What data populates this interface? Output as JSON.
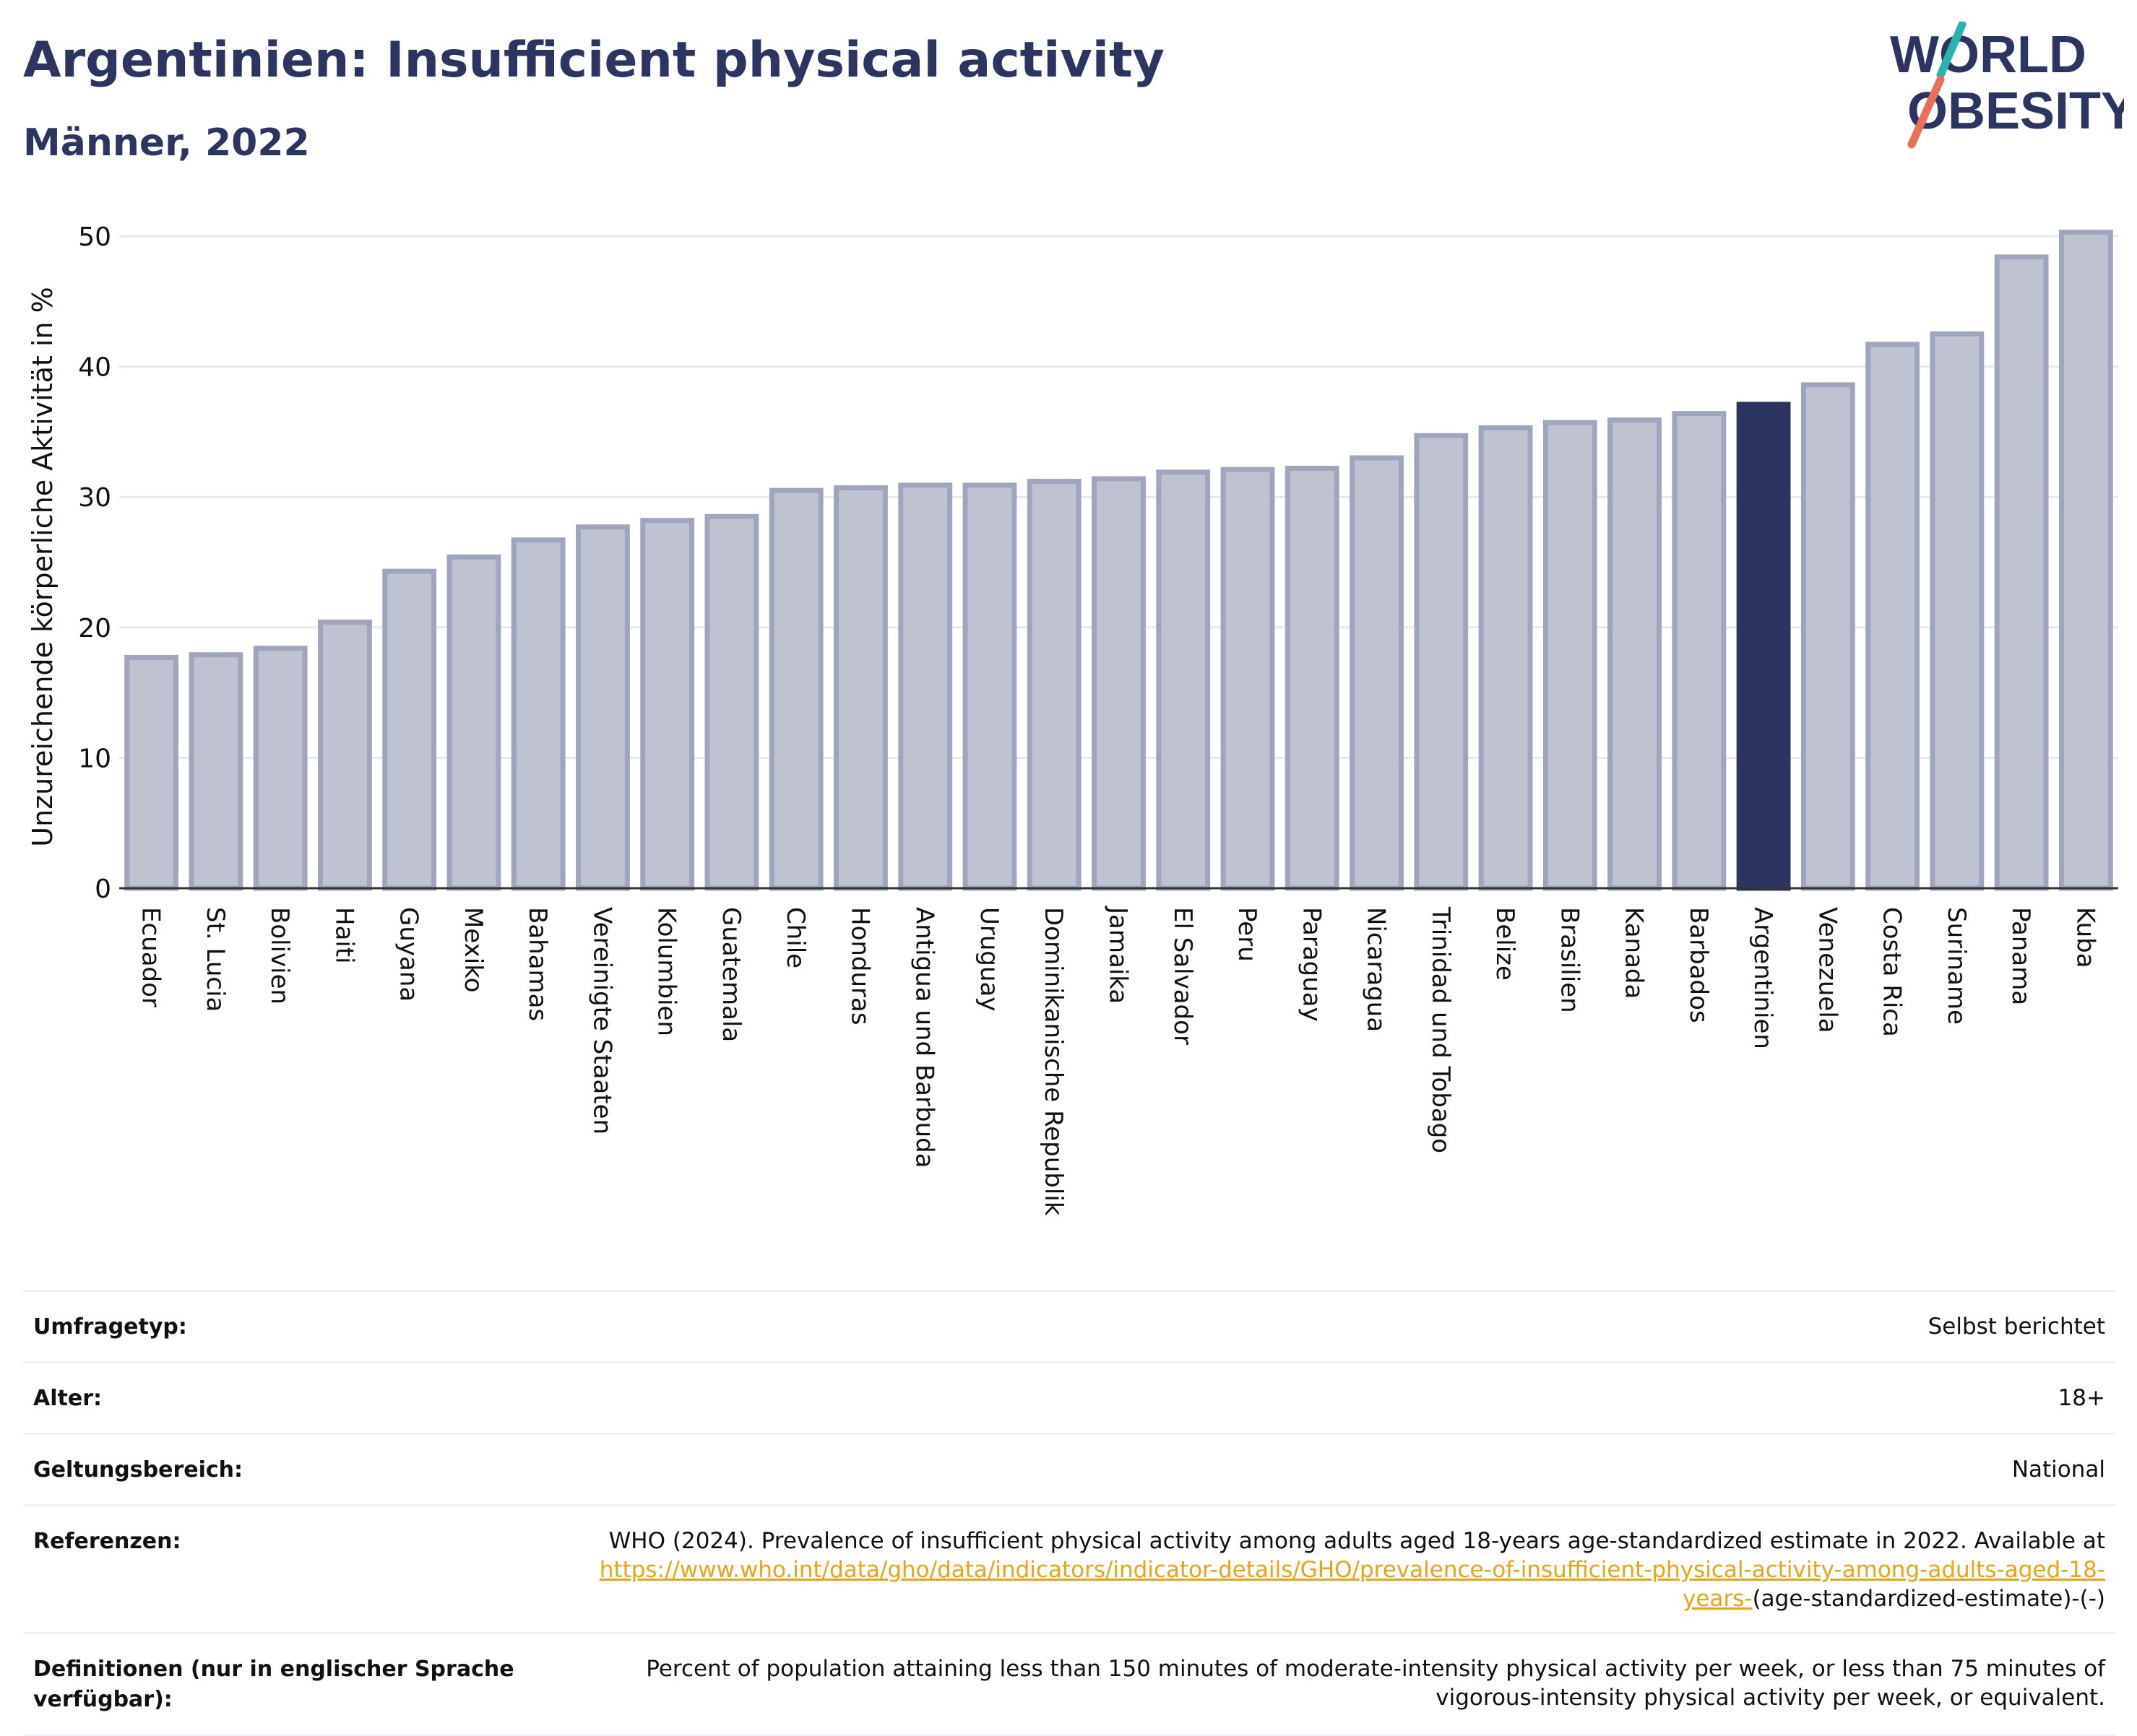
{
  "header": {
    "title": "Argentinien: Insufficient physical activity",
    "subtitle": "Männer, 2022",
    "logo_line1": "WORLD",
    "logo_line2": "OBESITY"
  },
  "colors": {
    "title": "#2b3560",
    "bar": "#bfc3d1",
    "bar_border": "#9ea5bd",
    "highlight": "#2b3560",
    "link": "#e8a317",
    "logo_teal": "#2bb3b1",
    "logo_coral": "#e8705a"
  },
  "chart_data": {
    "type": "bar",
    "ylabel": "Unzureichende körperliche Aktivität in %",
    "ylim": [
      0,
      50
    ],
    "yticks": [
      0,
      10,
      20,
      30,
      40,
      50
    ],
    "grid": true,
    "highlight": "Argentinien",
    "categories": [
      "Ecuador",
      "St. Lucia",
      "Bolivien",
      "Haiti",
      "Guyana",
      "Mexiko",
      "Bahamas",
      "Vereinigte Staaten",
      "Kolumbien",
      "Guatemala",
      "Chile",
      "Honduras",
      "Antigua und Barbuda",
      "Uruguay",
      "Dominikanische Republik",
      "Jamaika",
      "El Salvador",
      "Peru",
      "Paraguay",
      "Nicaragua",
      "Trinidad und Tobago",
      "Belize",
      "Brasilien",
      "Kanada",
      "Barbados",
      "Argentinien",
      "Venezuela",
      "Costa Rica",
      "Suriname",
      "Panama",
      "Kuba"
    ],
    "values": [
      17.7,
      17.9,
      18.4,
      20.4,
      24.3,
      25.4,
      26.7,
      27.7,
      28.2,
      28.5,
      30.5,
      30.7,
      30.9,
      30.9,
      31.2,
      31.4,
      31.9,
      32.1,
      32.2,
      33.0,
      34.7,
      35.3,
      35.7,
      35.9,
      36.4,
      37.1,
      38.6,
      41.7,
      42.5,
      48.4,
      50.3
    ]
  },
  "meta": {
    "survey_type_label": "Umfragetyp:",
    "survey_type_value": "Selbst berichtet",
    "age_label": "Alter:",
    "age_value": "18+",
    "scope_label": "Geltungsbereich:",
    "scope_value": "National",
    "references_label": "Referenzen:",
    "references_text": "WHO (2024). Prevalence of insufficient physical activity among adults aged 18-years age-standardized estimate in 2022. Available at",
    "references_link": "https://www.who.int/data/gho/data/indicators/indicator-details/GHO/prevalence-of-insufficient-physical-activity-among-adults-aged-18-years-",
    "references_suffix": "(age-standardized-estimate)-(-)",
    "definitions_label": "Definitionen (nur in englischer Sprache verfügbar):",
    "definitions_value": "Percent of population attaining less than 150 minutes of moderate-intensity physical activity per week, or less than 75 minutes of vigorous-intensity physical activity per week, or equivalent."
  }
}
